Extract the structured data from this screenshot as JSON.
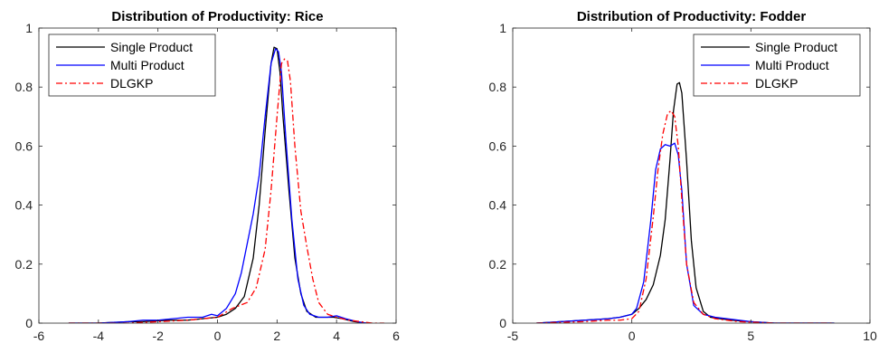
{
  "chart_data": [
    {
      "type": "line",
      "title": "Distribution of Productivity: Rice",
      "xlabel": "",
      "ylabel": "",
      "xlim": [
        -6,
        6
      ],
      "ylim": [
        0,
        1
      ],
      "xticks": [
        "-6",
        "-4",
        "-2",
        "0",
        "2",
        "4",
        "6"
      ],
      "yticks": [
        "0",
        "0.2",
        "0.4",
        "0.6",
        "0.8",
        "1"
      ],
      "legend_position": "top-left",
      "grid": false,
      "series": [
        {
          "name": "Single Product",
          "color": "#000000",
          "dash": "solid",
          "x": [
            -5,
            -4,
            -3,
            -2.5,
            -2,
            -1.5,
            -1,
            -0.5,
            0,
            0.3,
            0.6,
            0.9,
            1.2,
            1.4,
            1.6,
            1.8,
            1.9,
            2.0,
            2.1,
            2.2,
            2.4,
            2.6,
            2.8,
            3.0,
            3.3,
            3.6,
            3.9,
            4.2,
            4.6,
            5.0
          ],
          "y": [
            0,
            0,
            0.005,
            0.005,
            0.008,
            0.01,
            0.01,
            0.015,
            0.02,
            0.03,
            0.05,
            0.09,
            0.22,
            0.4,
            0.65,
            0.88,
            0.935,
            0.93,
            0.85,
            0.7,
            0.45,
            0.22,
            0.1,
            0.04,
            0.02,
            0.02,
            0.02,
            0.015,
            0.005,
            0
          ]
        },
        {
          "name": "Multi Product",
          "color": "#0000ff",
          "dash": "solid",
          "x": [
            -5,
            -4,
            -3,
            -2.5,
            -2,
            -1.5,
            -1,
            -0.5,
            -0.2,
            0,
            0.3,
            0.6,
            0.8,
            1.0,
            1.2,
            1.4,
            1.6,
            1.8,
            1.95,
            2.05,
            2.15,
            2.3,
            2.5,
            2.7,
            2.9,
            3.1,
            3.4,
            3.7,
            4.0,
            4.3,
            4.7,
            5.0
          ],
          "y": [
            0,
            0,
            0.005,
            0.01,
            0.01,
            0.015,
            0.02,
            0.02,
            0.03,
            0.025,
            0.05,
            0.1,
            0.17,
            0.27,
            0.37,
            0.5,
            0.7,
            0.88,
            0.93,
            0.92,
            0.85,
            0.62,
            0.35,
            0.15,
            0.06,
            0.03,
            0.02,
            0.02,
            0.025,
            0.015,
            0.005,
            0
          ]
        },
        {
          "name": "DLGKP",
          "color": "#ff0000",
          "dash": "dashdot",
          "x": [
            -5,
            -4,
            -3,
            -2,
            -1,
            0,
            0.5,
            1.0,
            1.3,
            1.6,
            1.8,
            2.0,
            2.15,
            2.25,
            2.35,
            2.45,
            2.6,
            2.8,
            3.0,
            3.2,
            3.4,
            3.7,
            4.0,
            4.4,
            4.8,
            5.2,
            5.6
          ],
          "y": [
            0,
            0,
            0,
            0.005,
            0.01,
            0.02,
            0.05,
            0.07,
            0.12,
            0.25,
            0.45,
            0.7,
            0.88,
            0.895,
            0.89,
            0.82,
            0.6,
            0.38,
            0.26,
            0.15,
            0.07,
            0.03,
            0.02,
            0.01,
            0.005,
            0,
            0
          ]
        }
      ]
    },
    {
      "type": "line",
      "title": "Distribution of Productivity: Fodder",
      "xlabel": "",
      "ylabel": "",
      "xlim": [
        -5,
        10
      ],
      "ylim": [
        0,
        1
      ],
      "xticks": [
        "-5",
        "0",
        "5",
        "10"
      ],
      "yticks": [
        "0",
        "0.2",
        "0.4",
        "0.6",
        "0.8",
        "1"
      ],
      "legend_position": "top-right",
      "grid": false,
      "series": [
        {
          "name": "Single Product",
          "color": "#000000",
          "dash": "solid",
          "x": [
            -4,
            -3,
            -2,
            -1,
            -0.5,
            0,
            0.3,
            0.6,
            0.9,
            1.2,
            1.4,
            1.6,
            1.75,
            1.9,
            2.0,
            2.1,
            2.3,
            2.5,
            2.7,
            3.0,
            3.3,
            3.7,
            4.2,
            5.0,
            6.0,
            7.0,
            8.5
          ],
          "y": [
            0,
            0.005,
            0.01,
            0.015,
            0.02,
            0.03,
            0.05,
            0.08,
            0.13,
            0.23,
            0.35,
            0.55,
            0.72,
            0.81,
            0.815,
            0.78,
            0.55,
            0.28,
            0.12,
            0.04,
            0.02,
            0.015,
            0.01,
            0.005,
            0,
            0,
            0
          ]
        },
        {
          "name": "Multi Product",
          "color": "#0000ff",
          "dash": "solid",
          "x": [
            -4,
            -3,
            -2,
            -1,
            -0.5,
            0,
            0.2,
            0.5,
            0.8,
            1.0,
            1.2,
            1.4,
            1.6,
            1.8,
            1.95,
            2.1,
            2.3,
            2.6,
            3.0,
            3.5,
            4.0,
            5.0,
            6.0,
            7.5,
            8.5
          ],
          "y": [
            0,
            0.005,
            0.01,
            0.015,
            0.02,
            0.03,
            0.05,
            0.14,
            0.35,
            0.52,
            0.59,
            0.605,
            0.6,
            0.61,
            0.57,
            0.45,
            0.2,
            0.06,
            0.03,
            0.02,
            0.015,
            0.005,
            0,
            0,
            0
          ]
        },
        {
          "name": "DLGKP",
          "color": "#ff0000",
          "dash": "dashdot",
          "x": [
            -4,
            -2,
            -1,
            -0.5,
            0,
            0.3,
            0.6,
            0.9,
            1.1,
            1.3,
            1.5,
            1.65,
            1.8,
            1.95,
            2.1,
            2.3,
            2.6,
            3.0,
            3.5,
            4.5,
            6.0,
            8.5
          ],
          "y": [
            0,
            0.005,
            0.01,
            0.01,
            0.015,
            0.04,
            0.15,
            0.36,
            0.52,
            0.64,
            0.71,
            0.72,
            0.7,
            0.6,
            0.42,
            0.2,
            0.07,
            0.03,
            0.015,
            0.005,
            0,
            0
          ]
        }
      ]
    }
  ]
}
